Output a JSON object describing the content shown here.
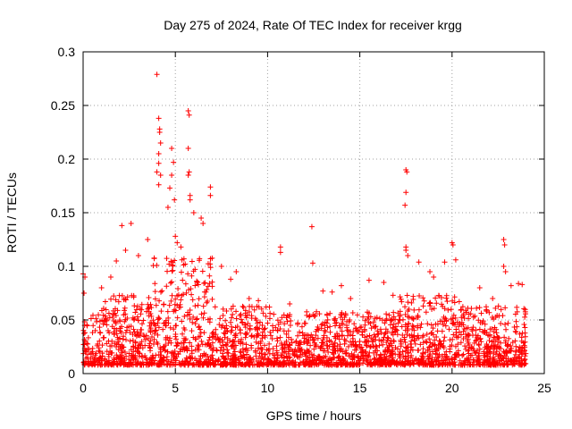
{
  "chart_data": {
    "type": "scatter",
    "title": "Day 275 of 2024, Rate Of TEC Index for receiver krgg",
    "xlabel": "GPS time / hours",
    "ylabel": "ROTI / TECUs",
    "xlim": [
      0,
      25
    ],
    "ylim": [
      0,
      0.3
    ],
    "xticks": [
      0,
      5,
      10,
      15,
      20,
      25
    ],
    "xtick_labels": [
      "0",
      "5",
      "10",
      "15",
      "20",
      "25"
    ],
    "yticks": [
      0,
      0.05,
      0.1,
      0.15,
      0.2,
      0.25,
      0.3
    ],
    "ytick_labels": [
      "0",
      "0.05",
      "0.1",
      "0.15",
      "0.2",
      "0.25",
      "0.3"
    ],
    "grid": true,
    "legend": "none",
    "marker": "+",
    "color": "#ff0000",
    "x_data_range": [
      0,
      24
    ],
    "series": [
      {
        "points": [
          [
            4.0,
            0.279
          ],
          [
            4.1,
            0.238
          ],
          [
            4.15,
            0.228
          ],
          [
            4.15,
            0.225
          ],
          [
            4.2,
            0.215
          ],
          [
            4.1,
            0.205
          ],
          [
            4.1,
            0.196
          ],
          [
            4.0,
            0.188
          ],
          [
            4.2,
            0.185
          ],
          [
            4.1,
            0.176
          ],
          [
            4.8,
            0.21
          ],
          [
            4.9,
            0.197
          ],
          [
            4.8,
            0.185
          ],
          [
            4.7,
            0.173
          ],
          [
            4.95,
            0.162
          ],
          [
            4.6,
            0.155
          ],
          [
            5.0,
            0.128
          ],
          [
            5.1,
            0.122
          ],
          [
            5.3,
            0.118
          ],
          [
            5.7,
            0.245
          ],
          [
            5.75,
            0.241
          ],
          [
            5.7,
            0.21
          ],
          [
            5.75,
            0.188
          ],
          [
            5.7,
            0.185
          ],
          [
            5.8,
            0.166
          ],
          [
            5.8,
            0.162
          ],
          [
            6.0,
            0.15
          ],
          [
            6.4,
            0.145
          ],
          [
            6.5,
            0.14
          ],
          [
            6.9,
            0.174
          ],
          [
            6.9,
            0.166
          ],
          [
            7.5,
            0.1
          ],
          [
            8.3,
            0.095
          ],
          [
            2.1,
            0.138
          ],
          [
            2.6,
            0.14
          ],
          [
            3.0,
            0.11
          ],
          [
            3.5,
            0.125
          ],
          [
            10.7,
            0.118
          ],
          [
            10.7,
            0.113
          ],
          [
            12.4,
            0.137
          ],
          [
            12.45,
            0.103
          ],
          [
            11.2,
            0.065
          ],
          [
            13.0,
            0.077
          ],
          [
            13.5,
            0.076
          ],
          [
            14.0,
            0.082
          ],
          [
            15.5,
            0.087
          ],
          [
            16.3,
            0.085
          ],
          [
            17.5,
            0.19
          ],
          [
            17.55,
            0.188
          ],
          [
            17.5,
            0.169
          ],
          [
            17.45,
            0.157
          ],
          [
            17.5,
            0.118
          ],
          [
            17.5,
            0.115
          ],
          [
            17.6,
            0.11
          ],
          [
            18.2,
            0.104
          ],
          [
            18.8,
            0.095
          ],
          [
            19.6,
            0.104
          ],
          [
            20.0,
            0.122
          ],
          [
            20.05,
            0.12
          ],
          [
            20.2,
            0.106
          ],
          [
            21.5,
            0.08
          ],
          [
            22.2,
            0.07
          ],
          [
            22.8,
            0.125
          ],
          [
            22.85,
            0.12
          ],
          [
            22.8,
            0.1
          ],
          [
            22.9,
            0.095
          ],
          [
            23.2,
            0.082
          ],
          [
            23.6,
            0.084
          ],
          [
            23.8,
            0.083
          ],
          [
            0.0,
            0.093
          ],
          [
            0.1,
            0.09
          ],
          [
            0.05,
            0.075
          ],
          [
            1.0,
            0.08
          ],
          [
            1.5,
            0.09
          ],
          [
            1.8,
            0.105
          ],
          [
            2.3,
            0.115
          ],
          [
            8.0,
            0.088
          ],
          [
            9.0,
            0.07
          ],
          [
            9.5,
            0.068
          ],
          [
            10.1,
            0.062
          ],
          [
            14.5,
            0.07
          ],
          [
            16.8,
            0.073
          ],
          [
            19.0,
            0.09
          ]
        ]
      }
    ]
  }
}
